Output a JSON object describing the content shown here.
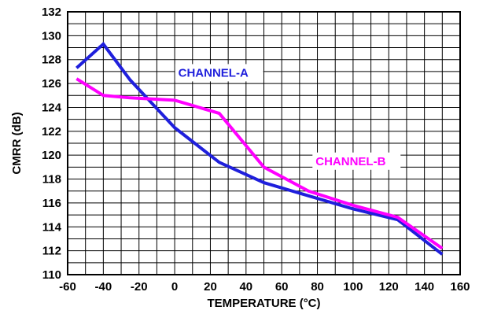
{
  "chart_data": {
    "type": "line",
    "title": "",
    "xlabel": "TEMPERATURE (°C)",
    "ylabel": "CMRR (dB)",
    "xlim": [
      -60,
      160
    ],
    "ylim": [
      110,
      132
    ],
    "xticks": [
      -60,
      -40,
      -20,
      0,
      20,
      40,
      60,
      80,
      100,
      120,
      140,
      160
    ],
    "yticks": [
      110,
      112,
      114,
      116,
      118,
      120,
      122,
      124,
      126,
      128,
      130,
      132
    ],
    "grid": true,
    "legend": "inline labels",
    "series": [
      {
        "name": "CHANNEL-A",
        "color": "#1f1fdc",
        "x": [
          -55,
          -40,
          -25,
          0,
          25,
          50,
          75,
          100,
          125,
          150
        ],
        "y": [
          127.3,
          129.3,
          126.3,
          122.3,
          119.4,
          117.7,
          116.6,
          115.5,
          114.6,
          111.7
        ]
      },
      {
        "name": "CHANNEL-B",
        "color": "#ff00ff",
        "x": [
          -55,
          -40,
          -25,
          0,
          25,
          50,
          75,
          100,
          125,
          150
        ],
        "y": [
          126.4,
          125.0,
          124.8,
          124.6,
          123.5,
          119.0,
          117.0,
          115.8,
          114.8,
          112.2
        ]
      }
    ],
    "annotations": [
      {
        "text": "CHANNEL-A",
        "color": "#1f1fdc",
        "x": 2,
        "y": 126.9
      },
      {
        "text": "CHANNEL-B",
        "color": "#ff00ff",
        "x": 79,
        "y": 119.5
      }
    ]
  }
}
